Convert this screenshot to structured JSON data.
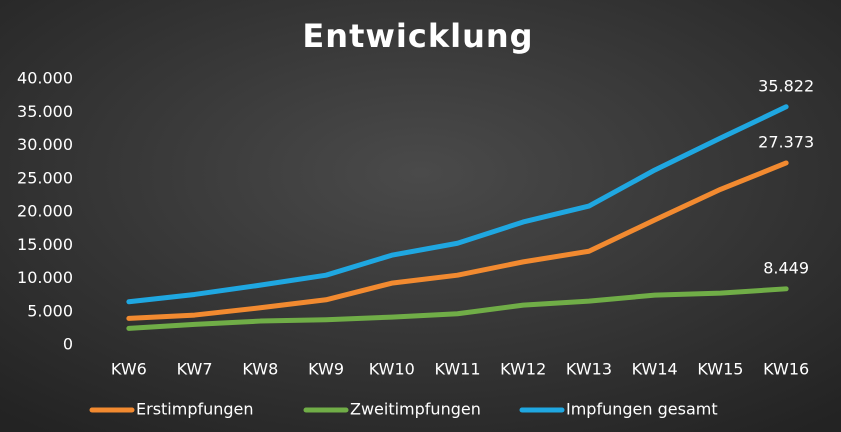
{
  "chart_data": {
    "type": "line",
    "title": "Entwicklung",
    "categories": [
      "KW6",
      "KW7",
      "KW8",
      "KW9",
      "KW10",
      "KW11",
      "KW12",
      "KW13",
      "KW14",
      "KW15",
      "KW16"
    ],
    "ylim": [
      0,
      40000
    ],
    "yticks": [
      0,
      {
        "value": 5000,
        "label": "5.000"
      },
      {
        "value": 10000,
        "label": "10.000"
      },
      {
        "value": 15000,
        "label": "15.000"
      },
      {
        "value": 20000,
        "label": "20.000"
      },
      {
        "value": 25000,
        "label": "25.000"
      },
      {
        "value": 30000,
        "label": "30.000"
      },
      {
        "value": 35000,
        "label": "35.000"
      },
      {
        "value": 40000,
        "label": "40.000"
      }
    ],
    "grid": false,
    "legend": "bottom",
    "series": [
      {
        "name": "Erstimpfungen",
        "color": "#f28a30",
        "values": [
          4000,
          4500,
          5600,
          6800,
          9300,
          10500,
          12500,
          14100,
          18800,
          23400,
          27373
        ],
        "value_labels": [
          null,
          null,
          null,
          null,
          null,
          null,
          null,
          null,
          null,
          null,
          "27.373"
        ]
      },
      {
        "name": "Zweitimpfungen",
        "color": "#70ad47",
        "values": [
          2500,
          3100,
          3600,
          3800,
          4200,
          4700,
          6000,
          6600,
          7500,
          7800,
          8449
        ],
        "value_labels": [
          null,
          null,
          null,
          null,
          null,
          null,
          null,
          null,
          null,
          null,
          "8.449"
        ]
      },
      {
        "name": "Impfungen gesamt",
        "color": "#1fa7e1",
        "values": [
          6500,
          7600,
          9000,
          10500,
          13500,
          15300,
          18500,
          20900,
          26300,
          31100,
          35822
        ],
        "value_labels": [
          null,
          null,
          null,
          null,
          null,
          null,
          null,
          null,
          null,
          null,
          "35.822"
        ]
      }
    ]
  }
}
